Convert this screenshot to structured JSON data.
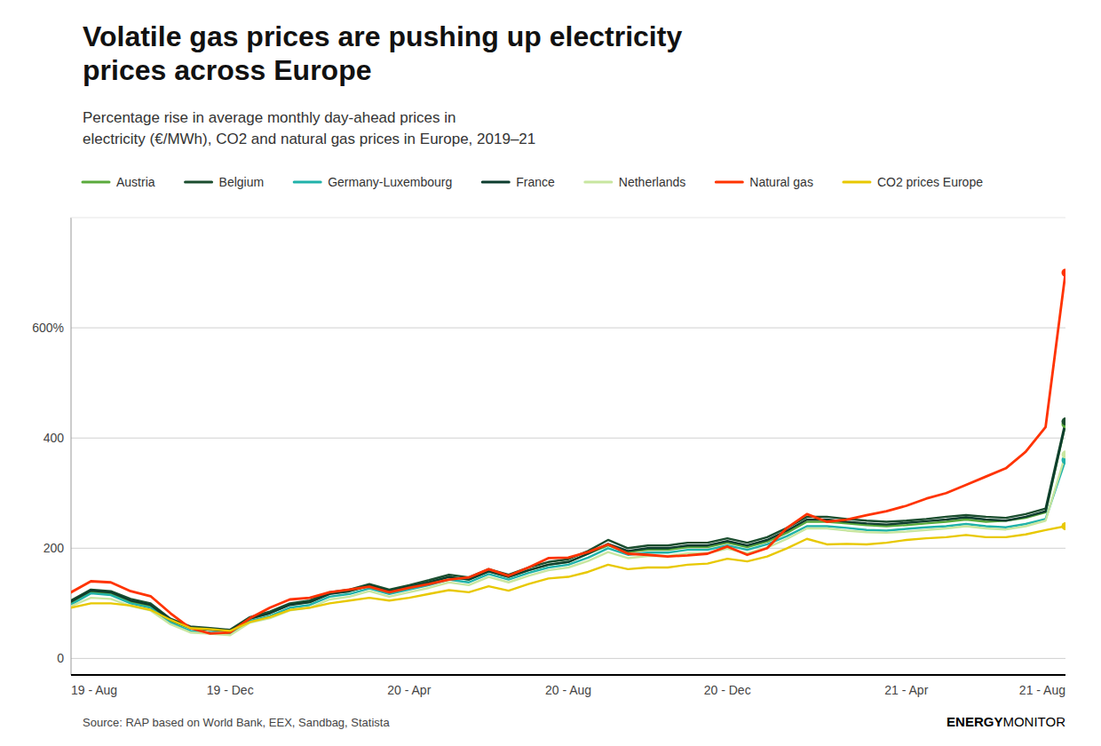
{
  "chart_data": {
    "type": "line",
    "title": "Volatile gas prices are pushing up electricity\nprices across Europe",
    "subtitle": "Percentage rise in average monthly day-ahead prices in\nelectricity (€/MWh), CO2 and natural gas prices in Europe, 2019–21",
    "source": "Source: RAP based on World Bank, EEX, Sandbag, Statista",
    "annotations": [
      "ENERGY",
      "MONITOR"
    ],
    "categories": [
      "19 - Aug",
      null,
      null,
      null,
      null,
      null,
      null,
      null,
      "19 - Dec",
      null,
      null,
      null,
      null,
      null,
      null,
      null,
      null,
      "20 - Apr",
      null,
      null,
      null,
      null,
      null,
      null,
      null,
      "20 - Aug",
      null,
      null,
      null,
      null,
      null,
      null,
      null,
      "20 - Dec",
      null,
      null,
      null,
      null,
      null,
      null,
      null,
      null,
      "21 - Apr",
      null,
      null,
      null,
      null,
      null,
      null,
      null,
      "21 - Aug"
    ],
    "ylim": [
      -30,
      800
    ],
    "yticks": [
      0,
      200,
      400,
      {
        "value": 600,
        "label": "600%"
      }
    ],
    "grid": true,
    "legend": "top",
    "series": [
      {
        "name": "Austria",
        "color": "#5aaa3c",
        "marker": "end",
        "values": [
          100,
          120,
          118,
          103,
          95,
          68,
          55,
          52,
          50,
          72,
          82,
          98,
          102,
          118,
          122,
          132,
          122,
          130,
          138,
          148,
          143,
          158,
          148,
          160,
          170,
          175,
          190,
          205,
          193,
          197,
          197,
          202,
          202,
          210,
          202,
          212,
          228,
          248,
          248,
          245,
          242,
          240,
          242,
          245,
          248,
          252,
          248,
          250,
          255,
          265,
          425
        ]
      },
      {
        "name": "Belgium",
        "color": "#1a4d2e",
        "marker": "end",
        "values": [
          105,
          125,
          122,
          108,
          100,
          72,
          58,
          55,
          52,
          75,
          85,
          100,
          105,
          120,
          125,
          135,
          125,
          133,
          142,
          152,
          147,
          162,
          152,
          165,
          175,
          180,
          195,
          215,
          200,
          205,
          205,
          210,
          210,
          218,
          210,
          220,
          237,
          257,
          257,
          253,
          250,
          248,
          250,
          253,
          257,
          260,
          257,
          255,
          262,
          272,
          430
        ]
      },
      {
        "name": "Germany-Luxembourg",
        "color": "#20b2aa",
        "marker": "end",
        "values": [
          98,
          118,
          115,
          100,
          92,
          65,
          50,
          47,
          45,
          68,
          77,
          92,
          97,
          112,
          117,
          127,
          117,
          125,
          133,
          143,
          138,
          153,
          143,
          155,
          165,
          170,
          183,
          200,
          188,
          192,
          192,
          197,
          197,
          205,
          197,
          207,
          222,
          240,
          240,
          237,
          233,
          232,
          235,
          238,
          240,
          244,
          240,
          238,
          244,
          253,
          360
        ]
      },
      {
        "name": "France",
        "color": "#0d3d2e",
        "values": [
          103,
          123,
          120,
          105,
          97,
          70,
          55,
          52,
          50,
          72,
          82,
          97,
          102,
          117,
          122,
          132,
          122,
          130,
          138,
          148,
          143,
          158,
          148,
          160,
          170,
          175,
          190,
          208,
          195,
          200,
          200,
          205,
          205,
          213,
          205,
          215,
          232,
          252,
          252,
          248,
          245,
          243,
          246,
          249,
          252,
          256,
          252,
          250,
          257,
          267,
          425
        ]
      },
      {
        "name": "Netherlands",
        "color": "#c8e6a0",
        "marker": "end",
        "values": [
          95,
          110,
          108,
          95,
          87,
          62,
          47,
          45,
          42,
          65,
          73,
          87,
          92,
          107,
          112,
          122,
          112,
          120,
          128,
          138,
          133,
          148,
          138,
          150,
          160,
          165,
          177,
          193,
          182,
          186,
          186,
          191,
          191,
          199,
          191,
          201,
          217,
          236,
          236,
          232,
          229,
          228,
          230,
          233,
          236,
          240,
          236,
          234,
          240,
          250,
          370
        ]
      },
      {
        "name": "Natural gas",
        "color": "#ff3300",
        "marker": "end",
        "values": [
          120,
          140,
          138,
          122,
          113,
          82,
          55,
          45,
          47,
          73,
          92,
          107,
          110,
          120,
          125,
          130,
          120,
          128,
          135,
          143,
          147,
          162,
          150,
          165,
          182,
          183,
          193,
          207,
          190,
          188,
          185,
          187,
          190,
          203,
          188,
          200,
          237,
          262,
          248,
          252,
          260,
          267,
          277,
          290,
          300,
          315,
          330,
          345,
          375,
          420,
          700
        ]
      },
      {
        "name": "CO2 prices Europe",
        "color": "#e8c800",
        "marker": "end",
        "values": [
          92,
          100,
          100,
          96,
          88,
          70,
          55,
          53,
          50,
          66,
          75,
          88,
          92,
          100,
          105,
          110,
          105,
          110,
          117,
          124,
          120,
          131,
          123,
          135,
          145,
          148,
          157,
          170,
          162,
          165,
          165,
          170,
          172,
          181,
          176,
          185,
          200,
          217,
          207,
          208,
          207,
          210,
          215,
          218,
          220,
          224,
          220,
          220,
          225,
          233,
          240
        ]
      }
    ]
  }
}
